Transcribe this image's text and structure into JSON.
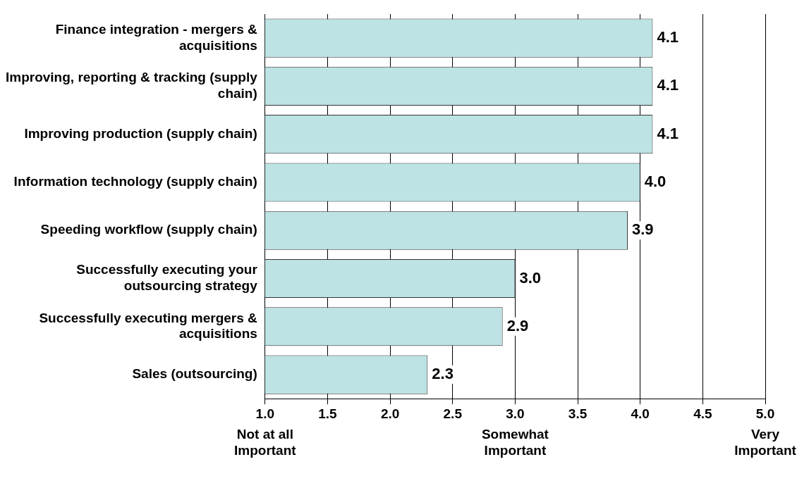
{
  "chart_data": {
    "type": "bar",
    "orientation": "horizontal",
    "categories": [
      "Finance integration - mergers & acquisitions",
      "Improving, reporting & tracking (supply chain)",
      "Improving production (supply chain)",
      "Information technology (supply chain)",
      "Speeding workflow (supply chain)",
      "Successfully executing your outsourcing strategy",
      "Successfully executing mergers & acquisitions",
      "Sales (outsourcing)"
    ],
    "values": [
      4.1,
      4.1,
      4.1,
      4.0,
      3.9,
      3.0,
      2.9,
      2.3
    ],
    "color": "#bde3e4",
    "xlim": [
      1.0,
      5.0
    ],
    "xticks": [
      {
        "value": 1,
        "label": "1.0"
      },
      {
        "value": 1.5,
        "label": "1.5"
      },
      {
        "value": 2,
        "label": "2.0"
      },
      {
        "value": 2.5,
        "label": "2.5"
      },
      {
        "value": 3,
        "label": "3.0"
      },
      {
        "value": 3.5,
        "label": "3.5"
      },
      {
        "value": 4,
        "label": "4.0"
      },
      {
        "value": 4.5,
        "label": "4.5"
      },
      {
        "value": 5,
        "label": "5.0"
      }
    ],
    "grid": "x",
    "value_labels": [
      "4.1",
      "4.1",
      "4.1",
      "4.0",
      "3.9",
      "3.0",
      "2.9",
      "2.3"
    ],
    "annotations": [
      "Not at all Important",
      "Somewhat Important",
      "Very Important"
    ]
  }
}
